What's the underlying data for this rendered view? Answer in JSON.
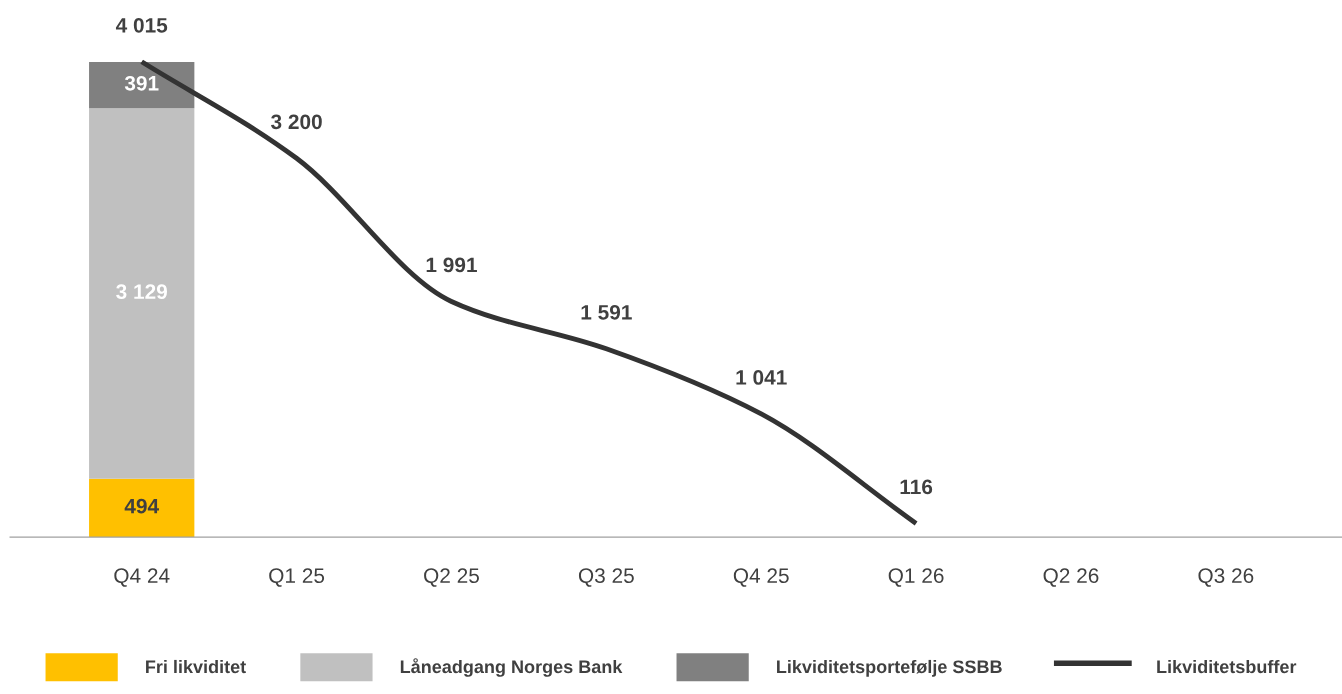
{
  "chart_data": {
    "type": "bar",
    "stacked": true,
    "data_labels": true,
    "legend": "bottom",
    "grid": false,
    "tick_labels": "x",
    "categories": [
      "Q4 24",
      "Q1 25",
      "Q2 25",
      "Q3 25",
      "Q4 25",
      "Q1 26",
      "Q2 26",
      "Q3 26"
    ],
    "series": [
      {
        "name": "Fri likviditet",
        "color": "#ffc000",
        "values": [
          494,
          null,
          null,
          null,
          null,
          null,
          null,
          null
        ]
      },
      {
        "name": "Låneadgang Norges Bank",
        "color": "#c0c0c0",
        "values": [
          3129,
          null,
          null,
          null,
          null,
          null,
          null,
          null
        ]
      },
      {
        "name": "Likviditetsportefølje SSBB",
        "color": "#808080",
        "values": [
          391,
          null,
          null,
          null,
          null,
          null,
          null,
          null
        ]
      },
      {
        "name": "Likviditetsbuffer",
        "type": "line",
        "color": "#333333",
        "values": [
          4015,
          3200,
          1991,
          1591,
          1041,
          116,
          null,
          null
        ]
      }
    ]
  }
}
